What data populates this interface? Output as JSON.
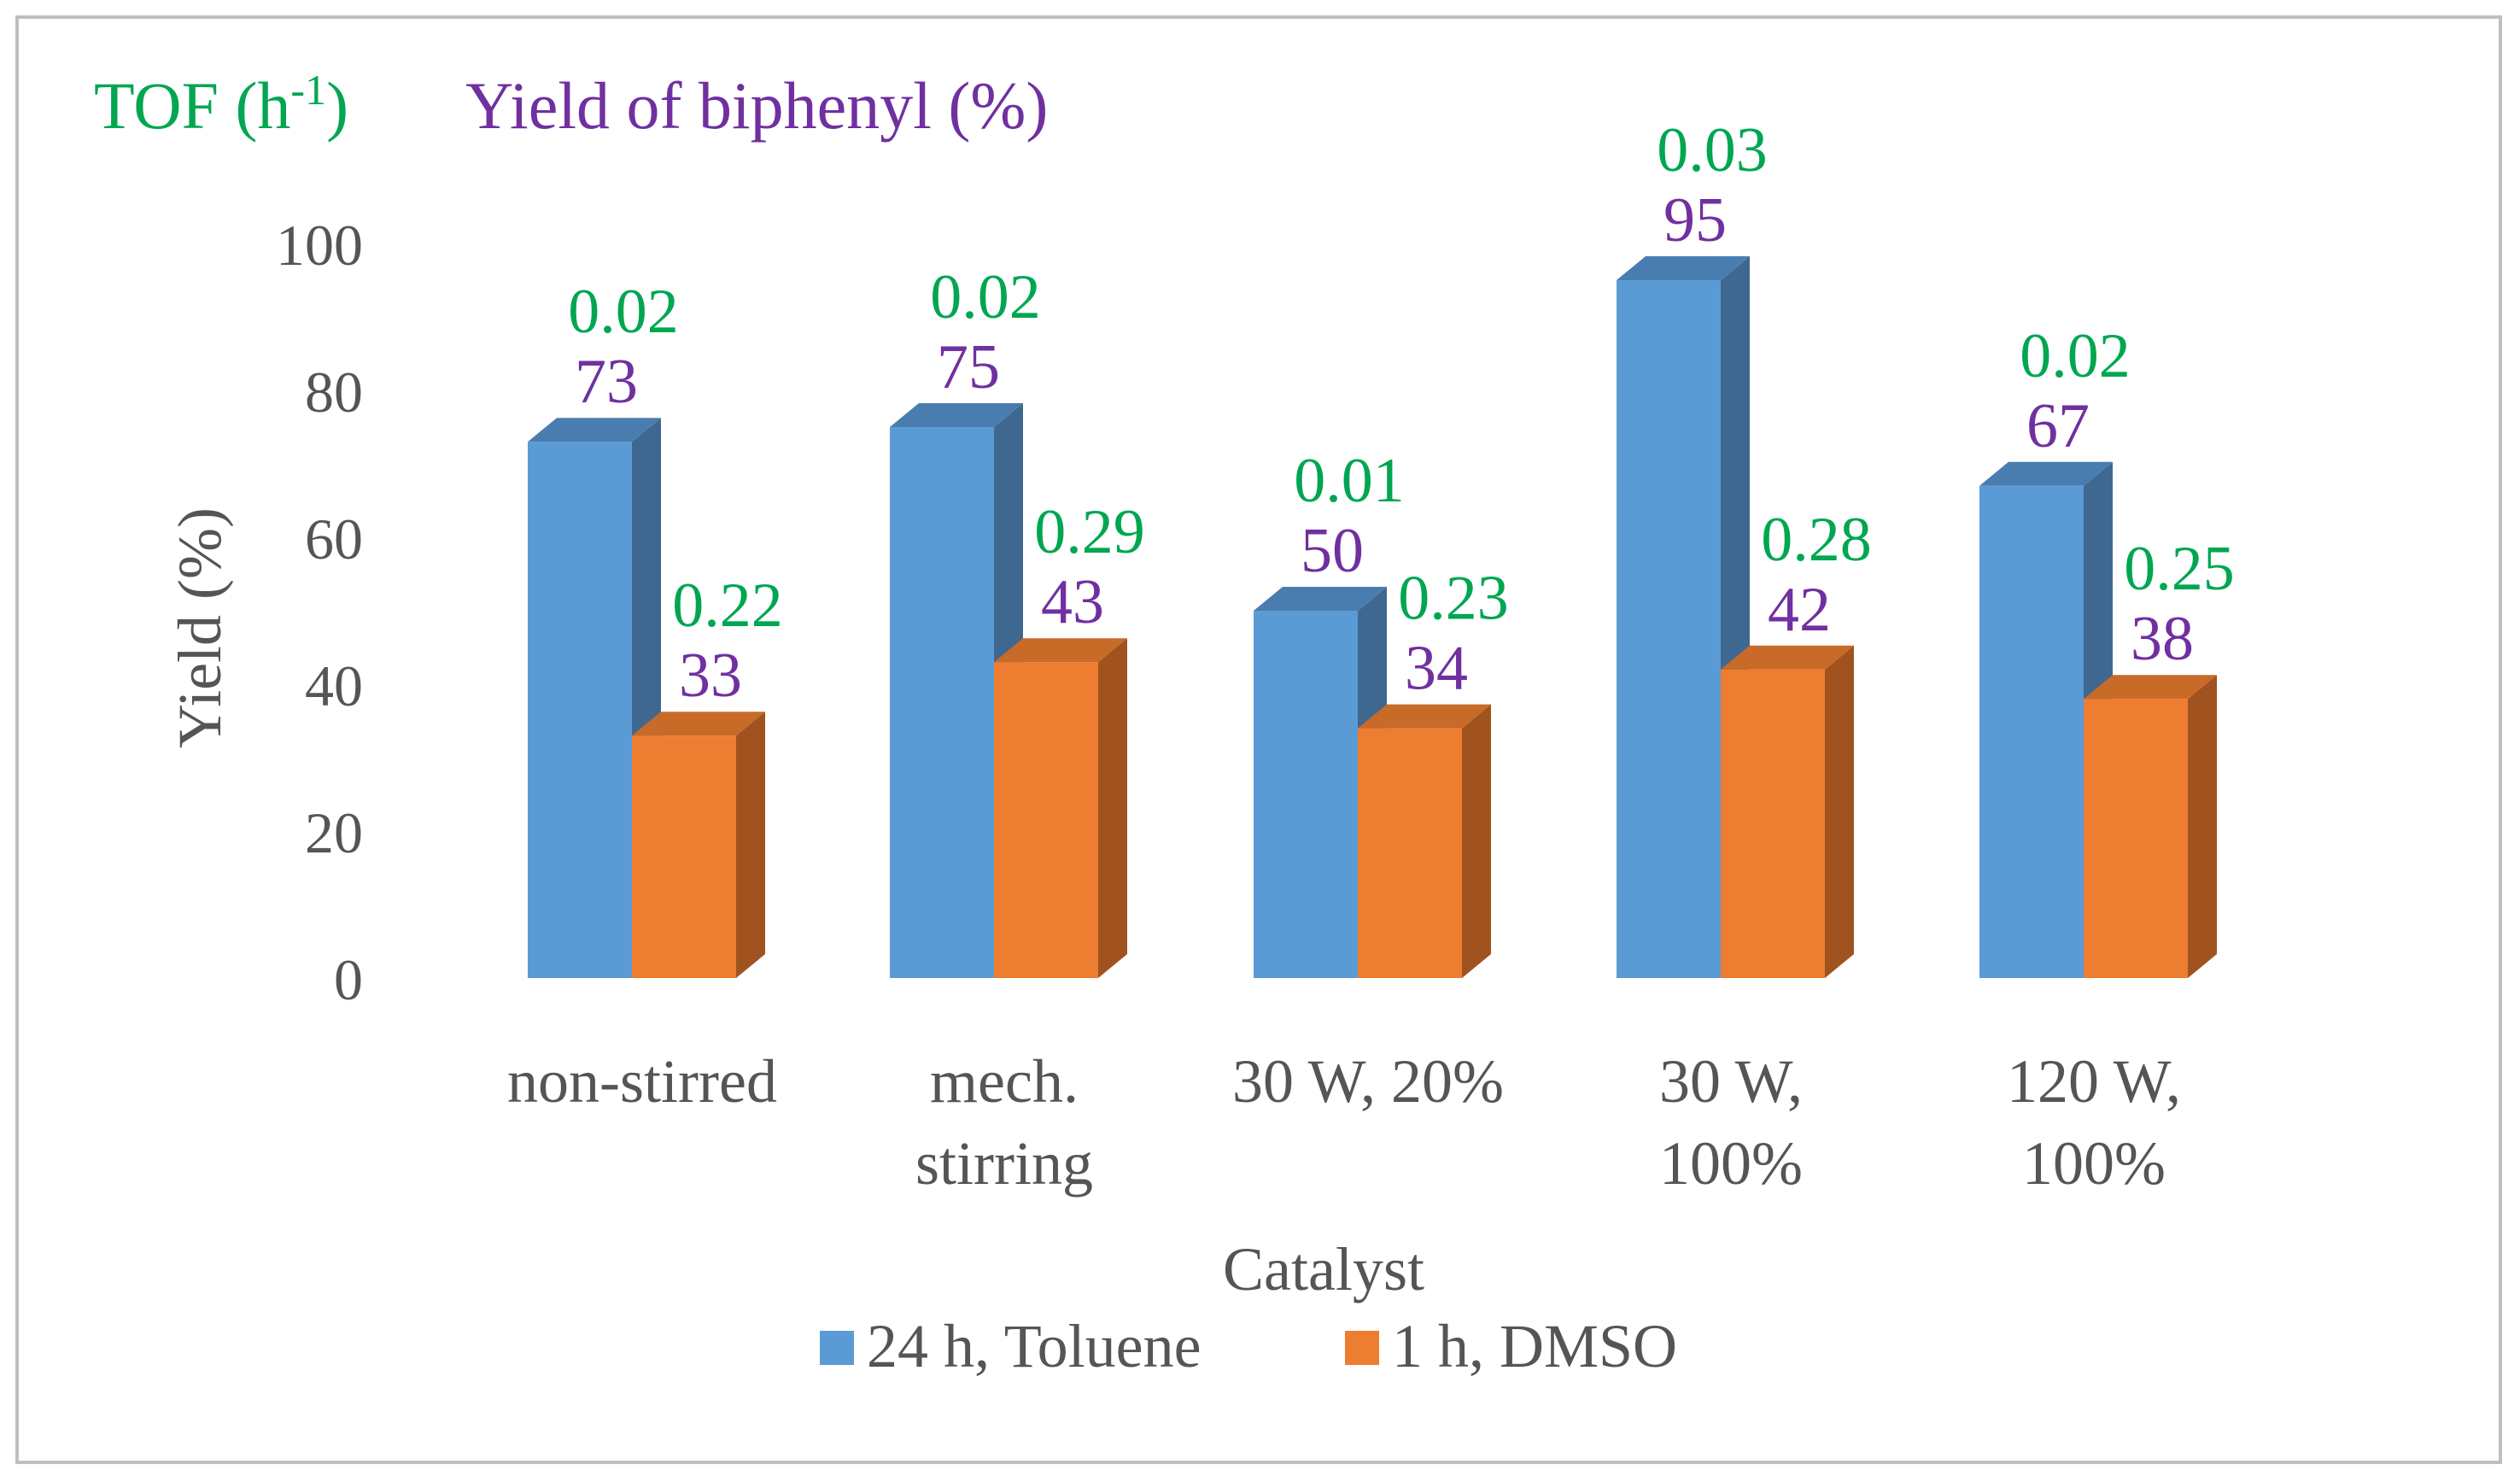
{
  "colors": {
    "toluene_front": "#5B9BD5",
    "toluene_side": "#3F6891",
    "toluene_top": "#4A7DAF",
    "dmso_front": "#ED7D31",
    "dmso_side": "#A0531E",
    "dmso_top": "#C86A28",
    "tof": "#00A651",
    "yield": "#7030A0",
    "axis_text": "#555555",
    "frame": "#BFBFBF"
  },
  "chart_data": {
    "type": "bar",
    "title": "",
    "header_tof": "TOF (h",
    "header_tof_sup": "-1",
    "header_tof_close": ")",
    "header_yield": "Yield of biphenyl (%)",
    "xlabel": "Catalyst",
    "ylabel": "Yield  (%)",
    "ylim": [
      0,
      100
    ],
    "yticks": [
      "0",
      "20",
      "40",
      "60",
      "80",
      "100"
    ],
    "categories": [
      [
        "non-stirred"
      ],
      [
        "mech.",
        "stirring"
      ],
      [
        "30 W, 20%"
      ],
      [
        "30 W,",
        "100%"
      ],
      [
        "120 W,",
        "100%"
      ]
    ],
    "series": [
      {
        "name": "24 h, Toluene",
        "values": [
          73,
          75,
          50,
          95,
          67
        ],
        "value_labels": [
          "73",
          "75",
          "50",
          "95",
          "67"
        ],
        "tof_labels": [
          "0.02",
          "0.02",
          "0.01",
          "0.03",
          "0.02"
        ]
      },
      {
        "name": "1 h, DMSO",
        "values": [
          33,
          43,
          34,
          42,
          38
        ],
        "value_labels": [
          "33",
          "43",
          "34",
          "42",
          "38"
        ],
        "tof_labels": [
          "0.22",
          "0.29",
          "0.23",
          "0.28",
          "0.25"
        ]
      }
    ],
    "legend": "bottom"
  }
}
